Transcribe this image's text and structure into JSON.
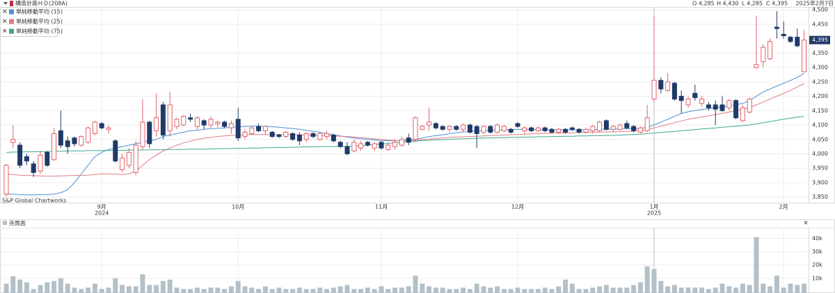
{
  "chart_data": {
    "type": "candlestick",
    "title": "構造計画ＨＤ(208A)",
    "ohlc_labels": [
      "O 4,285",
      "H 4,430",
      "L 4,285",
      "C 4,395"
    ],
    "date": "2025年2月7日",
    "source": "S&P Global Chartworks",
    "categories": [
      null,
      null,
      null,
      null,
      null,
      null,
      null,
      null,
      null,
      null,
      null,
      null,
      null,
      null,
      "9月",
      null,
      null,
      null,
      null,
      null,
      null,
      null,
      null,
      null,
      null,
      null,
      null,
      null,
      null,
      null,
      null,
      null,
      null,
      null,
      "10月",
      null,
      null,
      null,
      null,
      null,
      null,
      null,
      null,
      null,
      null,
      null,
      null,
      null,
      null,
      null,
      null,
      null,
      null,
      null,
      null,
      "11月",
      null,
      null,
      null,
      null,
      null,
      null,
      null,
      null,
      null,
      null,
      null,
      null,
      null,
      null,
      null,
      null,
      null,
      null,
      null,
      "12月",
      null,
      null,
      null,
      null,
      null,
      null,
      null,
      null,
      null,
      null,
      null,
      null,
      null,
      null,
      null,
      null,
      null,
      null,
      null,
      "1月",
      null,
      null,
      null,
      null,
      null,
      null,
      null,
      null,
      null,
      null,
      null,
      null,
      null,
      null,
      null,
      null,
      null,
      null,
      "2月",
      null,
      null,
      null
    ],
    "category_years": [
      null,
      null,
      null,
      null,
      null,
      null,
      null,
      null,
      null,
      null,
      null,
      null,
      null,
      null,
      "2024",
      null,
      null,
      null,
      null,
      null,
      null,
      null,
      null,
      null,
      null,
      null,
      null,
      null,
      null,
      null,
      null,
      null,
      null,
      null,
      null,
      null,
      null,
      null,
      null,
      null,
      null,
      null,
      null,
      null,
      null,
      null,
      null,
      null,
      null,
      null,
      null,
      null,
      null,
      null,
      null,
      null,
      null,
      null,
      null,
      null,
      null,
      null,
      null,
      null,
      null,
      null,
      null,
      null,
      null,
      null,
      null,
      null,
      null,
      null,
      null,
      null,
      null,
      null,
      null,
      null,
      null,
      null,
      null,
      null,
      null,
      null,
      null,
      null,
      null,
      null,
      null,
      null,
      null,
      null,
      null,
      "2025",
      null,
      null,
      null,
      null,
      null,
      null,
      null,
      null,
      null,
      null,
      null,
      null,
      null,
      null,
      null,
      null,
      null,
      null,
      null,
      null,
      null,
      null
    ],
    "open": [
      3860,
      4040,
      4030,
      3990,
      3965,
      3940,
      4005,
      3980,
      4080,
      4045,
      4055,
      4030,
      4040,
      4070,
      4105,
      4085,
      4045,
      3945,
      3960,
      3935,
      4025,
      4110,
      4080,
      4170,
      4080,
      4095,
      4100,
      4125,
      4095,
      4115,
      4100,
      4105,
      4110,
      4090,
      4120,
      4060,
      4070,
      4095,
      4080,
      4075,
      4065,
      4060,
      4070,
      4065,
      4050,
      4070,
      4050,
      4060,
      4065,
      4040,
      4025,
      4010,
      4020,
      4040,
      4020,
      4040,
      4015,
      4025,
      4030,
      4055,
      4050,
      4085,
      4100,
      4105,
      4095,
      4085,
      4095,
      4085,
      4100,
      4095,
      4075,
      4095,
      4075,
      4080,
      4085,
      4105,
      4080,
      4090,
      4080,
      4090,
      4085,
      4075,
      4085,
      4090,
      4085,
      4075,
      4080,
      4080,
      4115,
      4085,
      4085,
      4105,
      4095,
      4075,
      4080,
      4190,
      4255,
      4220,
      4245,
      4200,
      4170,
      4210,
      4175,
      4170,
      4170,
      4170,
      4160,
      4185,
      4115,
      4145,
      4300,
      4320,
      4330,
      4440,
      4415,
      4405,
      4405,
      4285
    ],
    "high": [
      3965,
      4100,
      4040,
      4000,
      3975,
      4010,
      4010,
      4090,
      4150,
      4060,
      4060,
      4065,
      4095,
      4115,
      4110,
      4100,
      4050,
      4000,
      4020,
      4045,
      4190,
      4115,
      4210,
      4180,
      4215,
      4125,
      4135,
      4140,
      4130,
      4120,
      4130,
      4115,
      4115,
      4115,
      4160,
      4085,
      4095,
      4105,
      4100,
      4080,
      4070,
      4080,
      4075,
      4075,
      4075,
      4075,
      4075,
      4080,
      4070,
      4045,
      4040,
      4050,
      4045,
      4045,
      4040,
      4045,
      4040,
      4050,
      4060,
      4070,
      4130,
      4100,
      4160,
      4110,
      4100,
      4100,
      4100,
      4105,
      4105,
      4100,
      4100,
      4100,
      4105,
      4100,
      4090,
      4110,
      4095,
      4095,
      4095,
      4095,
      4090,
      4090,
      4090,
      4095,
      4090,
      4090,
      4100,
      4115,
      4120,
      4100,
      4105,
      4115,
      4100,
      4095,
      4170,
      4480,
      4265,
      4280,
      4250,
      4220,
      4200,
      4240,
      4200,
      4180,
      4185,
      4200,
      4190,
      4190,
      4170,
      4195,
      4480,
      4380,
      4400,
      4495,
      4460,
      4410,
      4435,
      4430
    ],
    "low": [
      3850,
      4020,
      3950,
      3960,
      3920,
      3930,
      3955,
      3975,
      4020,
      4000,
      4025,
      4025,
      4035,
      4065,
      4085,
      4070,
      3970,
      3935,
      3950,
      3925,
      4015,
      4020,
      4060,
      4050,
      4060,
      4085,
      4095,
      4110,
      4085,
      4085,
      4090,
      4090,
      4090,
      4070,
      4045,
      4050,
      4065,
      4075,
      4065,
      4055,
      4055,
      4055,
      4045,
      4030,
      4040,
      4055,
      4045,
      4050,
      4040,
      4020,
      3995,
      4005,
      4010,
      4025,
      4010,
      4015,
      4010,
      4015,
      4025,
      4030,
      4040,
      4080,
      4080,
      4085,
      4080,
      4075,
      4080,
      4075,
      4070,
      4020,
      4070,
      4070,
      4070,
      4075,
      4070,
      4090,
      4070,
      4075,
      4075,
      4075,
      4070,
      4070,
      4070,
      4080,
      4070,
      4070,
      4070,
      4075,
      4080,
      4075,
      4080,
      4085,
      4075,
      4070,
      4075,
      4180,
      4210,
      4215,
      4185,
      4140,
      4160,
      4185,
      4165,
      4150,
      4100,
      4145,
      4150,
      4120,
      4110,
      4140,
      4295,
      4300,
      4325,
      4400,
      4400,
      4385,
      4370,
      4285
    ],
    "close": [
      3960,
      4050,
      3960,
      3975,
      3935,
      3995,
      3960,
      4070,
      4030,
      4025,
      4035,
      4060,
      4090,
      4110,
      4090,
      4090,
      3975,
      3985,
      4005,
      4030,
      4110,
      4035,
      4125,
      4065,
      4170,
      4120,
      4130,
      4120,
      4125,
      4100,
      4120,
      4110,
      4095,
      4105,
      4055,
      4075,
      4090,
      4080,
      4095,
      4060,
      4060,
      4075,
      4050,
      4045,
      4070,
      4060,
      4070,
      4070,
      4045,
      4025,
      4000,
      4040,
      4035,
      4030,
      4035,
      4020,
      4030,
      4040,
      4050,
      4040,
      4125,
      4095,
      4110,
      4090,
      4085,
      4095,
      4085,
      4100,
      4075,
      4070,
      4095,
      4075,
      4100,
      4095,
      4075,
      4095,
      4090,
      4080,
      4090,
      4080,
      4075,
      4085,
      4075,
      4085,
      4075,
      4085,
      4095,
      4110,
      4085,
      4095,
      4100,
      4090,
      4080,
      4090,
      4125,
      4255,
      4225,
      4250,
      4190,
      4185,
      4190,
      4195,
      4190,
      4160,
      4155,
      4150,
      4185,
      4125,
      4160,
      4190,
      4310,
      4370,
      4390,
      4435,
      4410,
      4390,
      4375,
      4395
    ],
    "up_color": "#e0606a",
    "down_color": "#1f3a68",
    "series": [
      {
        "name": "単純移動平均 (15)",
        "color": "#4a8fd4",
        "values": [
          3860,
          3860,
          3858,
          3857,
          3857,
          3858,
          3858,
          3860,
          3865,
          3875,
          3900,
          3930,
          3960,
          3990,
          4005,
          4015,
          4020,
          4025,
          4030,
          4035,
          4040,
          4045,
          4050,
          4060,
          4065,
          4070,
          4075,
          4080,
          4082,
          4085,
          4087,
          4088,
          4090,
          4092,
          4094,
          4095,
          4096,
          4096,
          4095,
          4094,
          4092,
          4090,
          4088,
          4085,
          4082,
          4078,
          4075,
          4070,
          4066,
          4062,
          4058,
          4055,
          4052,
          4050,
          4048,
          4046,
          4045,
          4045,
          4046,
          4048,
          4050,
          4055,
          4060,
          4063,
          4066,
          4070,
          4073,
          4076,
          4078,
          4080,
          4081,
          4082,
          4083,
          4084,
          4084,
          4085,
          4085,
          4085,
          4084,
          4084,
          4083,
          4083,
          4083,
          4083,
          4083,
          4083,
          4084,
          4085,
          4085,
          4086,
          4086,
          4087,
          4087,
          4088,
          4092,
          4100,
          4110,
          4120,
          4130,
          4140,
          4146,
          4150,
          4154,
          4157,
          4160,
          4163,
          4166,
          4170,
          4175,
          4185,
          4200,
          4215,
          4225,
          4235,
          4245,
          4255,
          4265,
          4280
        ]
      },
      {
        "name": "単純移動平均 (25)",
        "color": "#e07a80",
        "values": [
          3930,
          3928,
          3926,
          3925,
          3924,
          3923,
          3922,
          3922,
          3923,
          3924,
          3925,
          3925,
          3926,
          3928,
          3930,
          3930,
          3929,
          3928,
          3930,
          3940,
          3960,
          3980,
          3995,
          4010,
          4020,
          4030,
          4038,
          4044,
          4050,
          4054,
          4057,
          4060,
          4062,
          4064,
          4065,
          4066,
          4067,
          4067,
          4067,
          4067,
          4067,
          4067,
          4066,
          4066,
          4065,
          4065,
          4064,
          4063,
          4062,
          4061,
          4060,
          4058,
          4056,
          4054,
          4052,
          4050,
          4048,
          4046,
          4045,
          4046,
          4047,
          4049,
          4051,
          4053,
          4055,
          4057,
          4058,
          4059,
          4060,
          4061,
          4062,
          4063,
          4064,
          4065,
          4066,
          4067,
          4068,
          4069,
          4070,
          4071,
          4072,
          4072,
          4073,
          4073,
          4074,
          4074,
          4075,
          4075,
          4076,
          4076,
          4077,
          4078,
          4079,
          4080,
          4084,
          4090,
          4096,
          4102,
          4108,
          4114,
          4120,
          4124,
          4128,
          4132,
          4136,
          4140,
          4145,
          4150,
          4155,
          4160,
          4170,
          4180,
          4190,
          4200,
          4210,
          4220,
          4232,
          4245
        ]
      },
      {
        "name": "単純移動平均 (75)",
        "color": "#3aa88e",
        "values": [
          4005,
          4006,
          4006,
          4007,
          4007,
          4008,
          4008,
          4009,
          4009,
          4010,
          4010,
          4010,
          4011,
          4011,
          4011,
          4012,
          4012,
          4012,
          4013,
          4013,
          4013,
          4014,
          4014,
          4014,
          4015,
          4015,
          4015,
          4016,
          4016,
          4016,
          4017,
          4017,
          4018,
          4018,
          4019,
          4019,
          4020,
          4020,
          4021,
          4021,
          4022,
          4022,
          4023,
          4023,
          4024,
          4024,
          4025,
          4025,
          4025,
          4026,
          4026,
          4027,
          4028,
          4030,
          4032,
          4034,
          4036,
          4038,
          4040,
          4042,
          4044,
          4046,
          4047,
          4048,
          4049,
          4050,
          4051,
          4052,
          4053,
          4054,
          4055,
          4055,
          4056,
          4056,
          4057,
          4057,
          4058,
          4058,
          4059,
          4059,
          4060,
          4060,
          4061,
          4061,
          4062,
          4062,
          4063,
          4063,
          4064,
          4064,
          4065,
          4066,
          4067,
          4068,
          4070,
          4072,
          4074,
          4076,
          4078,
          4080,
          4082,
          4084,
          4086,
          4088,
          4090,
          4092,
          4094,
          4096,
          4098,
          4100,
          4104,
          4108,
          4112,
          4116,
          4120,
          4124,
          4127,
          4130
        ]
      }
    ],
    "ylim": [
      3830,
      4510
    ],
    "yticks": [
      {
        "value": 3850,
        "label": "3,850"
      },
      {
        "value": 3900,
        "label": "3,900"
      },
      {
        "value": 3950,
        "label": "3,950"
      },
      {
        "value": 4000,
        "label": "4,000"
      },
      {
        "value": 4050,
        "label": "4,050"
      },
      {
        "value": 4100,
        "label": "4,100"
      },
      {
        "value": 4150,
        "label": "4,150"
      },
      {
        "value": 4200,
        "label": "4,200"
      },
      {
        "value": 4250,
        "label": "4,250"
      },
      {
        "value": 4300,
        "label": "4,300"
      },
      {
        "value": 4350,
        "label": "4,350"
      },
      {
        "value": 4450,
        "label": "4,450"
      },
      {
        "value": 4500,
        "label": "4,500"
      }
    ],
    "last_price": {
      "value": 4395,
      "label": "4,395"
    },
    "volume_title": "売買高",
    "volume_color": "#b4c0c8",
    "volume": [
      6000,
      11500,
      9000,
      7000,
      2000,
      5000,
      7000,
      8000,
      10000,
      6000,
      3000,
      2000,
      3000,
      6000,
      2000,
      3000,
      10000,
      5000,
      4000,
      4000,
      13000,
      5000,
      5000,
      8000,
      9000,
      3000,
      2000,
      2000,
      3000,
      2000,
      3000,
      3000,
      2000,
      4000,
      8000,
      4000,
      3000,
      2000,
      4000,
      2000,
      3000,
      2000,
      2000,
      3000,
      2000,
      2000,
      3000,
      2000,
      3000,
      4000,
      5000,
      2000,
      2000,
      3000,
      2000,
      4000,
      2000,
      3000,
      3000,
      4000,
      12000,
      6000,
      4000,
      3000,
      3000,
      2000,
      2000,
      3000,
      2000,
      6000,
      4000,
      3000,
      4000,
      2000,
      2000,
      3000,
      2000,
      2000,
      2000,
      3000,
      2000,
      4000,
      9000,
      6000,
      2000,
      2000,
      3000,
      4000,
      5000,
      3000,
      3000,
      3000,
      5000,
      7000,
      19000,
      17000,
      8000,
      4000,
      5000,
      3000,
      3000,
      3000,
      3000,
      2000,
      3000,
      6000,
      4000,
      3000,
      6000,
      5000,
      41000,
      6000,
      4000,
      12000,
      3000,
      6000,
      5000,
      6000
    ],
    "volume_ylim": [
      0,
      48000
    ],
    "volume_ticks": [
      {
        "value": 10000,
        "label": "10k"
      },
      {
        "value": 20000,
        "label": "20k"
      },
      {
        "value": 30000,
        "label": "30k"
      },
      {
        "value": 40000,
        "label": "40k"
      }
    ],
    "grid": true
  }
}
